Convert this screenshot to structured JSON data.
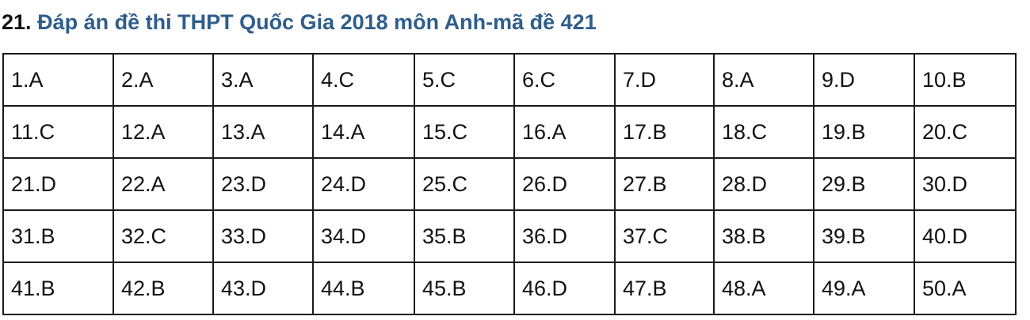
{
  "heading": {
    "number": "21.",
    "title": "Đáp án đề thi THPT Quốc Gia 2018 môn Anh-mã đề 421"
  },
  "answers": [
    [
      "1.A",
      "2.A",
      "3.A",
      "4.C",
      "5.C",
      "6.C",
      "7.D",
      "8.A",
      "9.D",
      "10.B"
    ],
    [
      "11.C",
      "12.A",
      "13.A",
      "14.A",
      "15.C",
      "16.A",
      "17.B",
      "18.C",
      "19.B",
      "20.C"
    ],
    [
      "21.D",
      "22.A",
      "23.D",
      "24.D",
      "25.C",
      "26.D",
      "27.B",
      "28.D",
      "29.B",
      "30.D"
    ],
    [
      "31.B",
      "32.C",
      "33.D",
      "34.D",
      "35.B",
      "36.D",
      "37.C",
      "38.B",
      "39.B",
      "40.D"
    ],
    [
      "41.B",
      "42.B",
      "43.D",
      "44.B",
      "45.B",
      "46.D",
      "47.B",
      "48.A",
      "49.A",
      "50.A"
    ]
  ]
}
